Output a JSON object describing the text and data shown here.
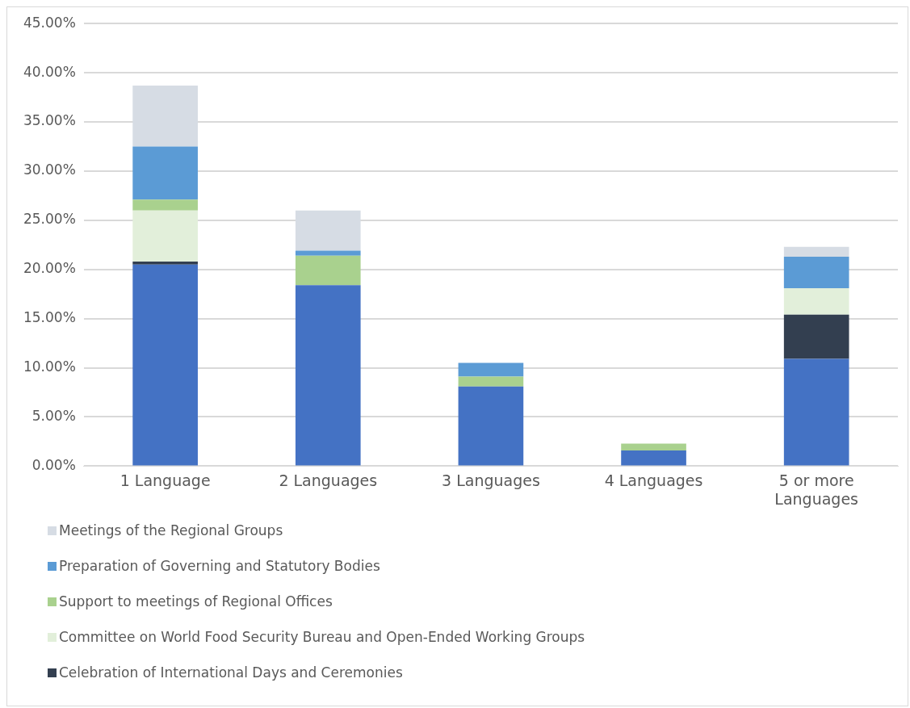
{
  "chart_data": {
    "type": "bar",
    "stacked": true,
    "categories": [
      "1 Language",
      "2 Languages",
      "3 Languages",
      "4 Languages",
      "5 or more Languages"
    ],
    "series": [
      {
        "color": "#4472c4",
        "values": [
          20.5,
          18.4,
          8.1,
          1.6,
          10.9
        ]
      },
      {
        "name": "Celebration of International Days and Ceremonies",
        "color": "#333f50",
        "values": [
          0.3,
          0,
          0,
          0,
          4.5
        ]
      },
      {
        "name": "Committee on World Food Security Bureau and Open-Ended Working Groups",
        "color": "#e2efda",
        "values": [
          5.2,
          0,
          0,
          0,
          2.7
        ]
      },
      {
        "name": "Support to meetings of Regional Offices",
        "color": "#a9d18e",
        "values": [
          1.1,
          3.0,
          1.0,
          0.7,
          0
        ]
      },
      {
        "name": "Preparation of Governing and Statutory Bodies",
        "color": "#5b9bd5",
        "values": [
          5.4,
          0.5,
          1.4,
          0,
          3.2
        ]
      },
      {
        "name": "Meetings of the Regional Groups",
        "color": "#d6dce4",
        "values": [
          6.2,
          4.1,
          0,
          0,
          1.0
        ]
      }
    ],
    "ylim": [
      0,
      45
    ],
    "yticks": [
      {
        "value": 0,
        "label": "0.00%"
      },
      {
        "value": 5,
        "label": "5.00%"
      },
      {
        "value": 10,
        "label": "10.00%"
      },
      {
        "value": 15,
        "label": "15.00%"
      },
      {
        "value": 20,
        "label": "20.00%"
      },
      {
        "value": 25,
        "label": "25.00%"
      },
      {
        "value": 30,
        "label": "30.00%"
      },
      {
        "value": 35,
        "label": "35.00%"
      },
      {
        "value": 40,
        "label": "40.00%"
      },
      {
        "value": 45,
        "label": "45.00%"
      }
    ],
    "grid": "y",
    "legend": "bottom"
  }
}
